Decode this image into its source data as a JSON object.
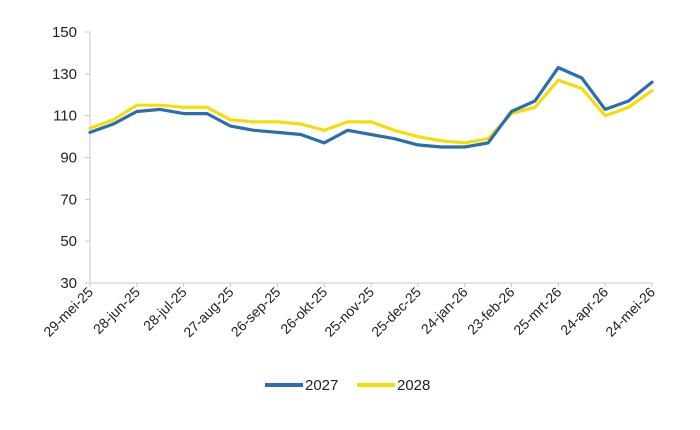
{
  "chart_data": {
    "type": "line",
    "title": "",
    "xlabel": "",
    "ylabel": "",
    "ylim": [
      30,
      150
    ],
    "yticks": [
      "150",
      "130",
      "110",
      "90",
      "70",
      "50",
      "30"
    ],
    "grid": false,
    "legend_position": "bottom",
    "x_ticks": [
      "29-mei-25",
      "28-jun-25",
      "28-jul-25",
      "27-aug-25",
      "26-sep-25",
      "26-okt-25",
      "25-nov-25",
      "25-dec-25",
      "24-jan-26",
      "23-feb-26",
      "25-mrt-26",
      "24-apr-26",
      "24-mei-26"
    ],
    "x": [
      "29-mei-25",
      "13-jun-25",
      "28-jun-25",
      "13-jul-25",
      "28-jul-25",
      "12-aug-25",
      "27-aug-25",
      "11-sep-25",
      "26-sep-25",
      "11-okt-25",
      "26-okt-25",
      "10-nov-25",
      "25-nov-25",
      "10-dec-25",
      "25-dec-25",
      "09-jan-26",
      "24-jan-26",
      "08-feb-26",
      "23-feb-26",
      "10-mrt-26",
      "25-mrt-26",
      "09-apr-26",
      "24-apr-26",
      "09-mei-26",
      "24-mei-26"
    ],
    "series": [
      {
        "name": "2027",
        "color": "#2a6db0",
        "values": [
          102,
          106,
          112,
          113,
          111,
          111,
          105,
          103,
          102,
          101,
          97,
          103,
          101,
          99,
          96,
          95,
          95,
          97,
          112,
          117,
          133,
          128,
          113,
          117,
          126
        ]
      },
      {
        "name": "2028",
        "color": "#f5dd0a",
        "values": [
          104,
          108,
          115,
          115,
          114,
          114,
          108,
          107,
          107,
          106,
          103,
          107,
          107,
          103,
          100,
          98,
          97,
          99,
          111,
          114,
          127,
          123,
          110,
          114,
          122
        ]
      }
    ]
  }
}
